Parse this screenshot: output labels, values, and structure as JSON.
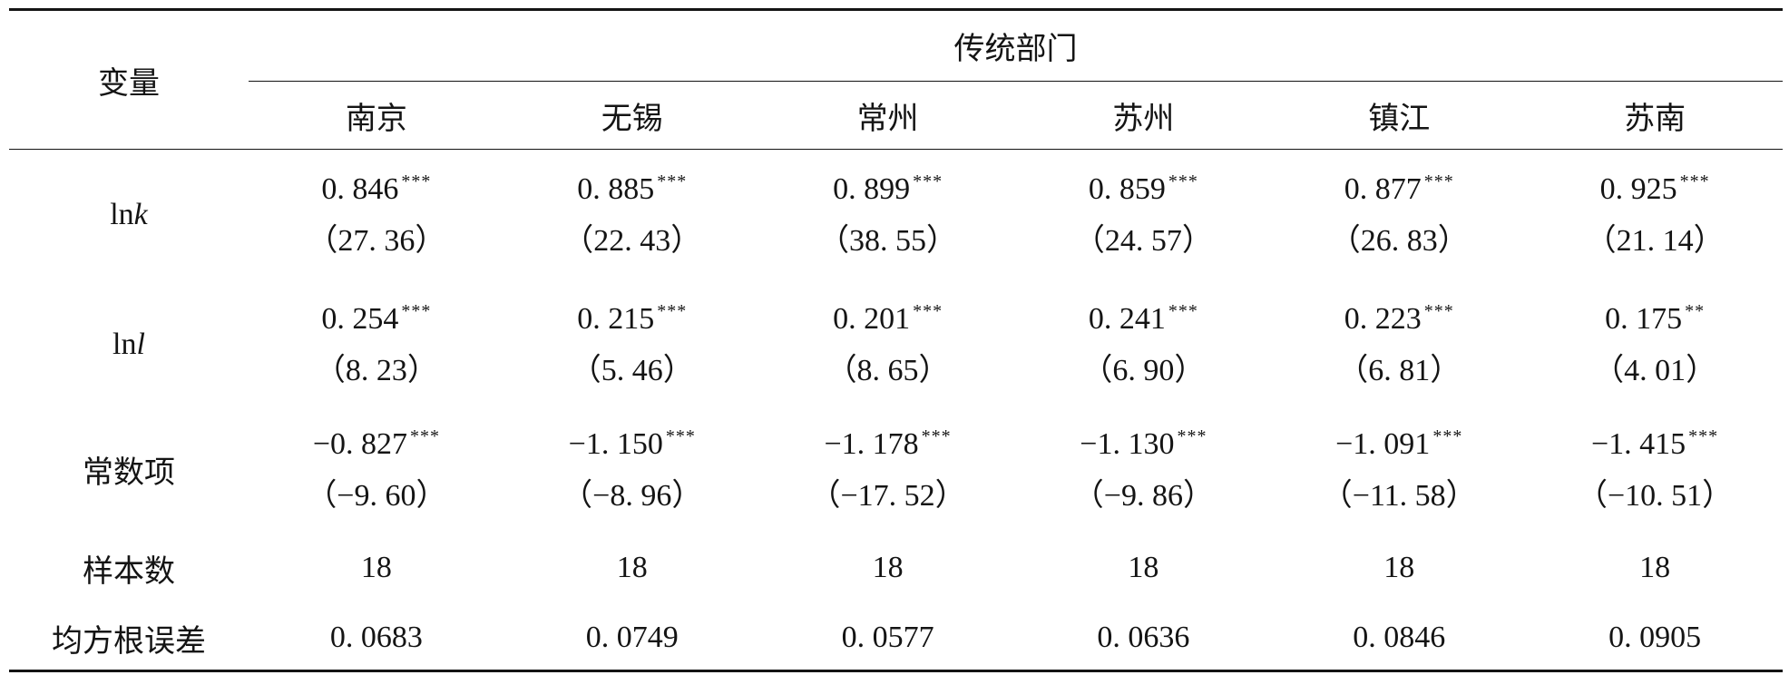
{
  "table": {
    "stub_header": "变量",
    "group_header": "传统部门",
    "columns": [
      "南京",
      "无锡",
      "常州",
      "苏州",
      "镇江",
      "苏南"
    ],
    "rows": [
      {
        "label_prefix": "ln",
        "label_var": "k",
        "coefficients": [
          "0. 846",
          "0. 885",
          "0. 899",
          "0. 859",
          "0. 877",
          "0. 925"
        ],
        "stars": [
          "***",
          "***",
          "***",
          "***",
          "***",
          "***"
        ],
        "t_stats": [
          "（27. 36）",
          "（22. 43）",
          "（38. 55）",
          "（24. 57）",
          "（26. 83）",
          "（21. 14）"
        ]
      },
      {
        "label_prefix": "ln",
        "label_var": "l",
        "coefficients": [
          "0. 254",
          "0. 215",
          "0. 201",
          "0. 241",
          "0. 223",
          "0. 175"
        ],
        "stars": [
          "***",
          "***",
          "***",
          "***",
          "***",
          "**"
        ],
        "t_stats": [
          "（8. 23）",
          "（5. 46）",
          "（8. 65）",
          "（6. 90）",
          "（6. 81）",
          "（4. 01）"
        ]
      },
      {
        "label": "常数项",
        "coefficients": [
          "−0. 827",
          "−1. 150",
          "−1. 178",
          "−1. 130",
          "−1. 091",
          "−1. 415"
        ],
        "stars": [
          "***",
          "***",
          "***",
          "***",
          "***",
          "***"
        ],
        "t_stats": [
          "（−9. 60）",
          "（−8. 96）",
          "（−17. 52）",
          "（−9. 86）",
          "（−11. 58）",
          "（−10. 51）"
        ]
      }
    ],
    "sample_size": {
      "label": "样本数",
      "values": [
        "18",
        "18",
        "18",
        "18",
        "18",
        "18"
      ]
    },
    "rmse": {
      "label": "均方根误差",
      "values": [
        "0. 0683",
        "0. 0749",
        "0. 0577",
        "0. 0636",
        "0. 0846",
        "0. 0905"
      ]
    }
  }
}
